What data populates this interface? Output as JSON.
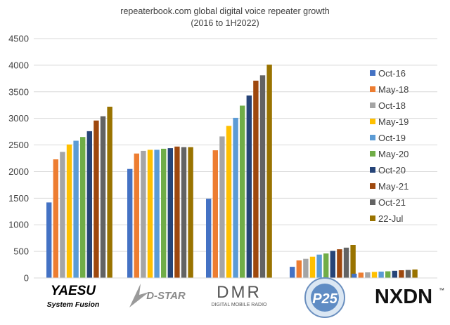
{
  "chart_data": {
    "type": "bar",
    "title": "repeaterbook.com global digital voice repeater growth",
    "subtitle": "(2016 to 1H2022)",
    "ylim": [
      0,
      4500
    ],
    "yticks": [
      "0",
      "500",
      "1000",
      "1500",
      "2000",
      "2500",
      "3000",
      "3500",
      "4000",
      "4500"
    ],
    "grid": true,
    "legend_position": "right",
    "categories": [
      "YAESU System Fusion",
      "D-STAR",
      "DMR",
      "P25",
      "NXDN"
    ],
    "series": [
      {
        "name": "Oct-16",
        "color": "#4472C4",
        "values": [
          1420,
          2050,
          1490,
          210,
          80
        ]
      },
      {
        "name": "May-18",
        "color": "#ED7D31",
        "values": [
          2230,
          2340,
          2400,
          330,
          100
        ]
      },
      {
        "name": "Oct-18",
        "color": "#A5A5A5",
        "values": [
          2370,
          2390,
          2660,
          360,
          105
        ]
      },
      {
        "name": "May-19",
        "color": "#FFC000",
        "values": [
          2510,
          2410,
          2860,
          400,
          115
        ]
      },
      {
        "name": "Oct-19",
        "color": "#5B9BD5",
        "values": [
          2580,
          2410,
          3010,
          440,
          120
        ]
      },
      {
        "name": "May-20",
        "color": "#70AD47",
        "values": [
          2650,
          2430,
          3240,
          460,
          125
        ]
      },
      {
        "name": "Oct-20",
        "color": "#264478",
        "values": [
          2760,
          2440,
          3430,
          510,
          135
        ]
      },
      {
        "name": "May-21",
        "color": "#9E480E",
        "values": [
          2960,
          2470,
          3710,
          540,
          145
        ]
      },
      {
        "name": "Oct-21",
        "color": "#636363",
        "values": [
          3040,
          2460,
          3810,
          570,
          150
        ]
      },
      {
        "name": "22-Jul",
        "color": "#997300",
        "values": [
          3220,
          2460,
          4010,
          620,
          160
        ]
      }
    ]
  },
  "logos": {
    "yaesu": {
      "main": "YAESU",
      "sub": "System Fusion"
    },
    "dstar": {
      "text": "D-STAR"
    },
    "dmr": {
      "main": "DMR",
      "sub": "DIGITAL MOBILE RADIO"
    },
    "p25": {
      "text": "P25"
    },
    "nxdn": {
      "text": "NXDN",
      "mark": "™"
    }
  }
}
